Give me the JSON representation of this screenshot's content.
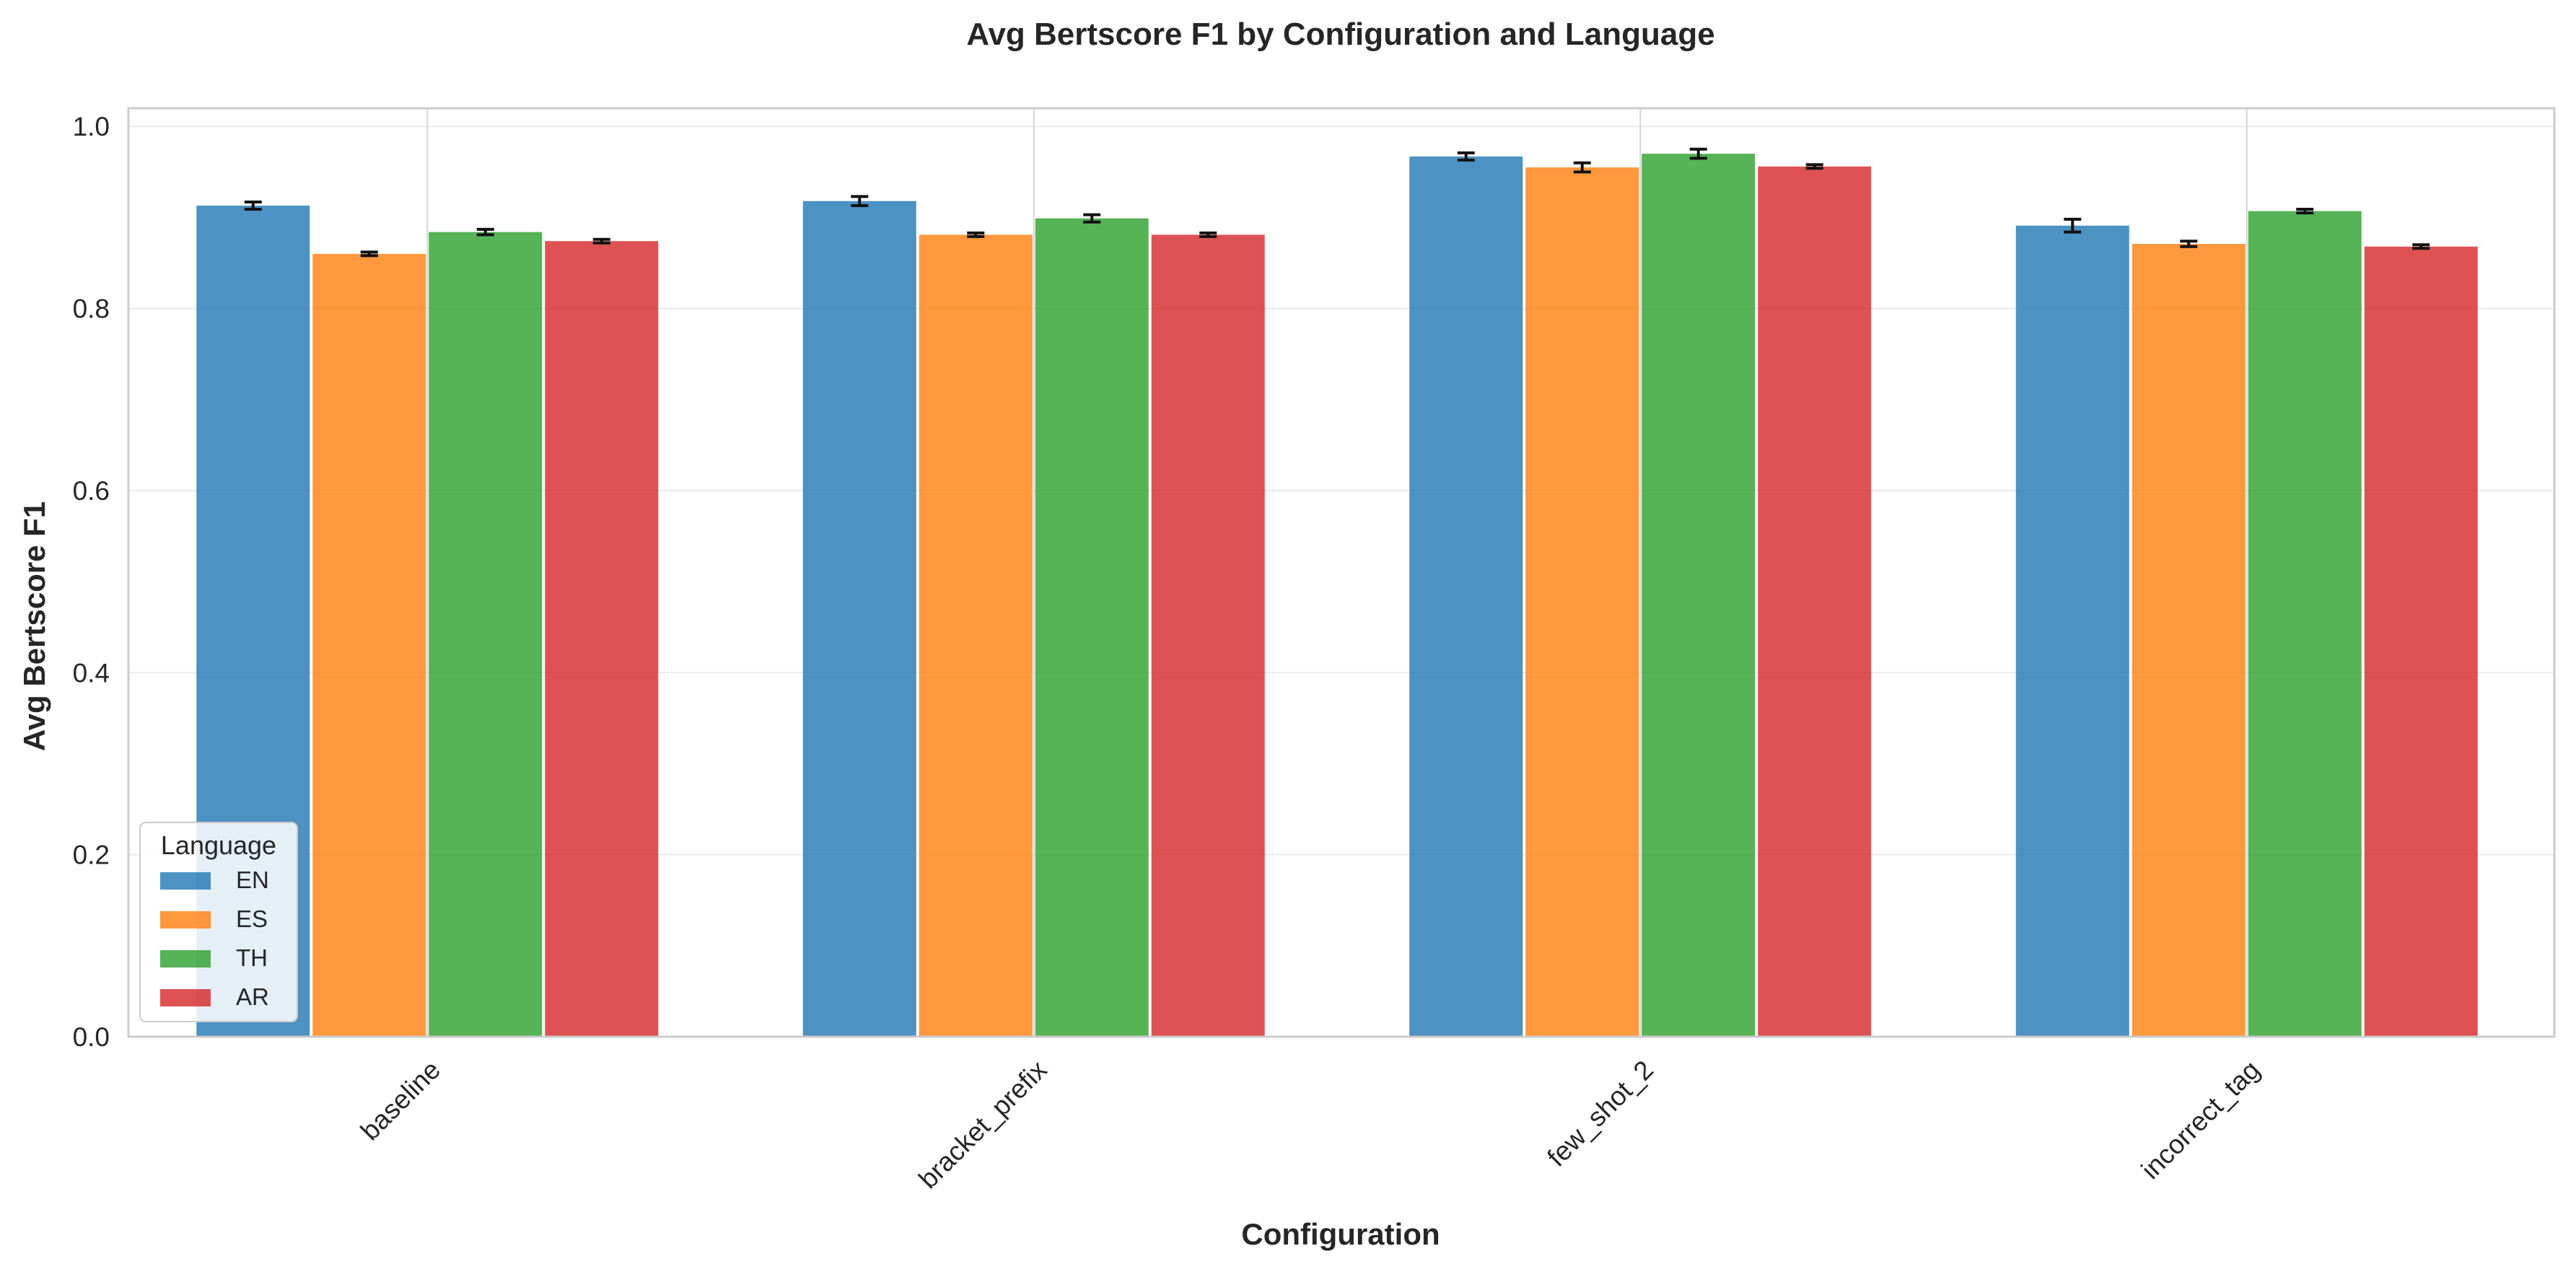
{
  "chart_data": {
    "type": "bar",
    "title": "Avg Bertscore F1 by Configuration and Language",
    "xlabel": "Configuration",
    "ylabel": "Avg Bertscore F1",
    "categories": [
      "baseline",
      "bracket_prefix",
      "few_shot_2",
      "incorrect_tag"
    ],
    "ylim": [
      0,
      1.02
    ],
    "yticks": [
      "0.0",
      "0.2",
      "0.4",
      "0.6",
      "0.8",
      "1.0"
    ],
    "grid": true,
    "legend": {
      "title": "Language",
      "position": "lower-left"
    },
    "series": [
      {
        "name": "EN",
        "color": "#1f77b4",
        "values": [
          0.913,
          0.918,
          0.967,
          0.891
        ],
        "errors": [
          0.004,
          0.005,
          0.004,
          0.007
        ]
      },
      {
        "name": "ES",
        "color": "#ff7f0e",
        "values": [
          0.86,
          0.881,
          0.955,
          0.871
        ],
        "errors": [
          0.002,
          0.002,
          0.005,
          0.003
        ]
      },
      {
        "name": "TH",
        "color": "#2ca02c",
        "values": [
          0.884,
          0.899,
          0.97,
          0.907
        ],
        "errors": [
          0.003,
          0.004,
          0.005,
          0.002
        ]
      },
      {
        "name": "AR",
        "color": "#d62728",
        "values": [
          0.874,
          0.881,
          0.956,
          0.868
        ],
        "errors": [
          0.002,
          0.002,
          0.002,
          0.002
        ]
      }
    ]
  }
}
